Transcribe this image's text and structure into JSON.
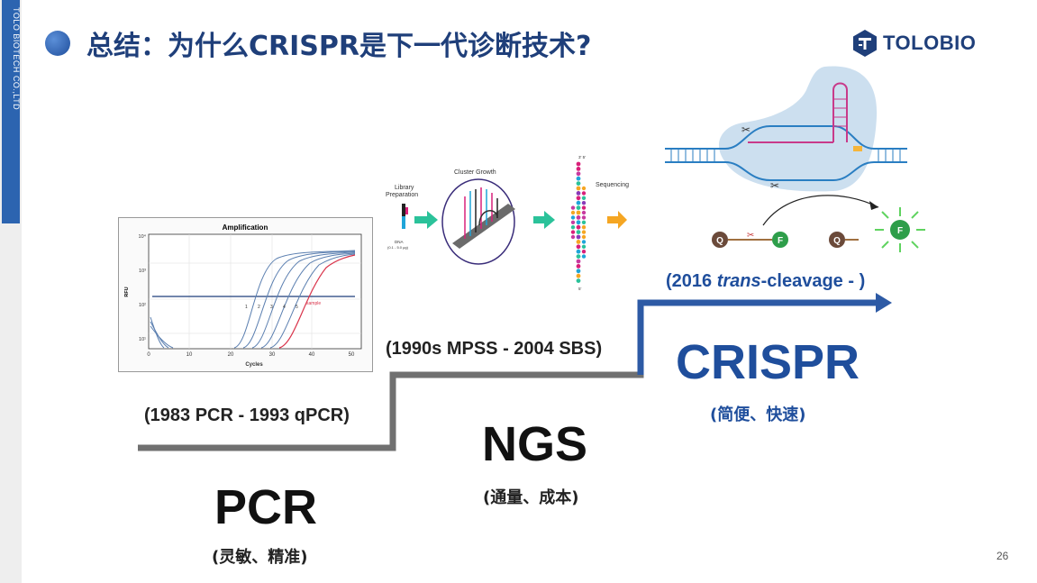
{
  "sidebar": {
    "text": "TOLO BIOTECH CO.,LTD"
  },
  "title": "总结：为什么CRISPR是下一代诊断技术?",
  "logo": {
    "text": "TOLOBIO"
  },
  "pcr": {
    "period": "(1983 PCR - 1993 qPCR)",
    "name": "PCR",
    "desc": "(灵敏、精准)",
    "chart": {
      "title": "Amplification",
      "xlabel": "Cycles",
      "ylabel": "RFU",
      "xticks": [
        "0",
        "10",
        "20",
        "30",
        "40",
        "50"
      ],
      "yticks": [
        "10⁴",
        "10³",
        "10²",
        "10¹"
      ],
      "curve_labels": [
        "1",
        "2",
        "3",
        "4",
        "5"
      ],
      "sample_label": "sample"
    }
  },
  "ngs": {
    "period": "(1990s MPSS - 2004 SBS)",
    "name": "NGS",
    "desc": "(通量、成本)",
    "diagram": {
      "step1": "Library",
      "step1b": "Preparation",
      "step2": "Cluster Growth",
      "step3": "Sequencing",
      "dna": "DNA",
      "dna_amount": "(0.1 - 5.0 μg)",
      "strand_top": "3' 5'",
      "strand_bottom": "5'"
    }
  },
  "crispr": {
    "period_prefix": "(2016 ",
    "period_italic": "trans",
    "period_suffix": "-cleavage - )",
    "name": "CRISPR",
    "desc": "(简便、快速)",
    "diagram": {
      "quencher": "Q",
      "fluor": "F"
    }
  },
  "page_number": "26",
  "colors": {
    "accent": "#1f4e9c",
    "step_gray": "#707070",
    "sidebar_blue": "#2c64b0"
  }
}
